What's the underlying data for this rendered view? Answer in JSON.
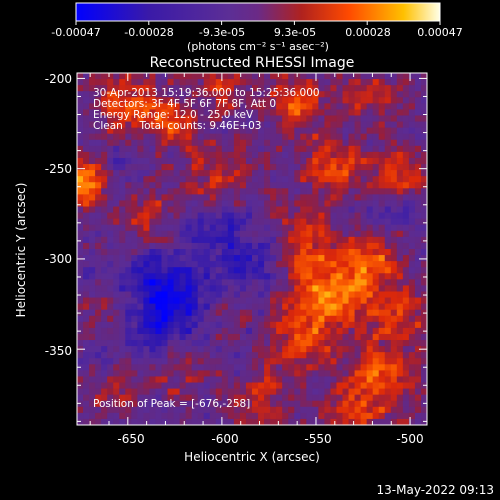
{
  "colorbar": {
    "ticks": [
      "-0.00047",
      "-0.00028",
      "-9.3e-05",
      "9.3e-05",
      "0.00028",
      "0.00047"
    ],
    "units": "(photons cm⁻² s⁻¹ asec⁻²)",
    "range": [
      -0.00047,
      0.00047
    ]
  },
  "chart_data": {
    "type": "heatmap",
    "title": "Reconstructed RHESSI Image",
    "xlabel": "Heliocentric X (arcsec)",
    "ylabel": "Heliocentric Y (arcsec)",
    "x_ticks": [
      "-650",
      "-600",
      "-550",
      "-500"
    ],
    "y_ticks": [
      "-200",
      "-250",
      "-300",
      "-350"
    ],
    "x_tick_values": [
      -650,
      -600,
      -550,
      -500
    ],
    "y_tick_values": [
      -200,
      -250,
      -300,
      -350
    ],
    "xlim": [
      -677,
      -491
    ],
    "ylim": [
      -392,
      -197
    ],
    "info_lines": [
      "30-Apr-2013 15:19:36.000 to 15:25:36.000",
      "Detectors: 3F 4F 5F 6F 7F 8F, Att 0",
      "Energy Range: 12.0 - 25.0 keV",
      "Clean     Total counts: 9.46E+03"
    ],
    "peak_label": "Position of Peak = [-676,-258]",
    "peak": [
      -676,
      -258
    ],
    "colormap": [
      "#0000ff",
      "#3a13b0",
      "#5a2ca0",
      "#6f2a8a",
      "#c0281e",
      "#ff5a00",
      "#ffb100",
      "#fff8e0"
    ]
  },
  "footer": {
    "timestamp": "13-May-2022 09:13"
  }
}
